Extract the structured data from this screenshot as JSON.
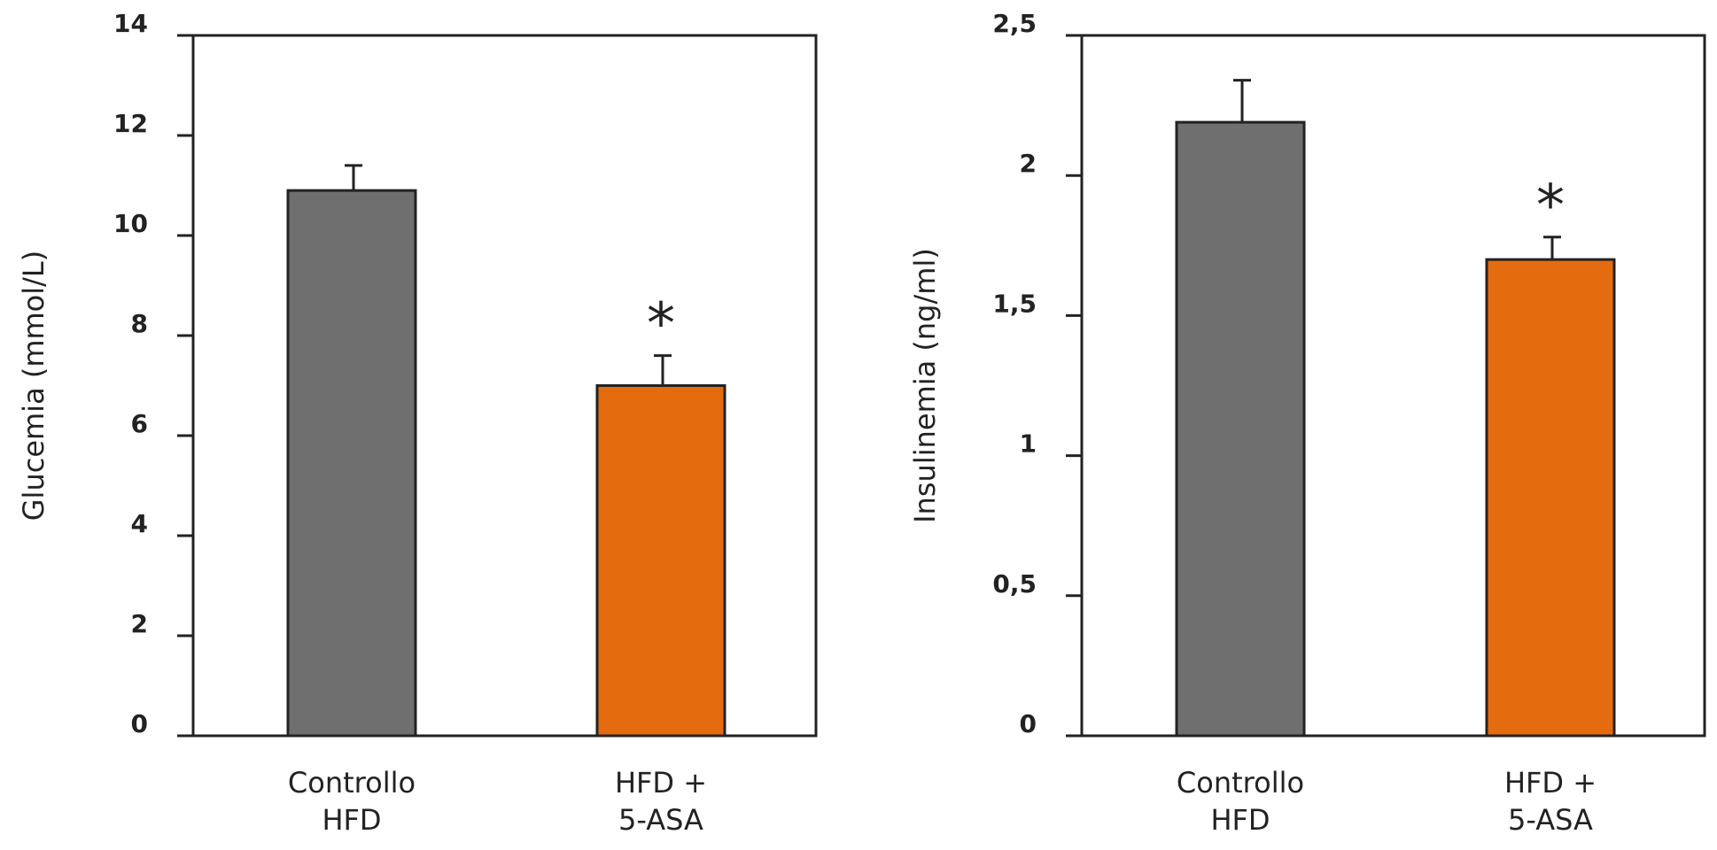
{
  "chart_data": [
    {
      "type": "bar",
      "categories": [
        [
          "Controllo",
          "HFD"
        ],
        [
          "HFD +",
          "5-ASA"
        ]
      ],
      "values": [
        10.9,
        7.0
      ],
      "errors": [
        0.5,
        0.6
      ],
      "annotations": [
        "",
        "*"
      ],
      "ylabel": "Glucemia (mmol/L)",
      "ylim": [
        0,
        14
      ],
      "yticks": [
        0,
        2,
        4,
        6,
        8,
        10,
        12,
        14
      ],
      "ytick_labels": [
        "0",
        "2",
        "4",
        "6",
        "8",
        "10",
        "12",
        "14"
      ],
      "colors": [
        "#706f6f",
        "#e46c0f"
      ],
      "grid": false,
      "legend": "none"
    },
    {
      "type": "bar",
      "categories": [
        [
          "Controllo",
          "HFD"
        ],
        [
          "HFD +",
          "5-ASA"
        ]
      ],
      "values": [
        2.19,
        1.7
      ],
      "errors": [
        0.15,
        0.08
      ],
      "annotations": [
        "",
        "*"
      ],
      "ylabel": "Insulinemia (ng/ml)",
      "ylim": [
        0,
        2.5
      ],
      "yticks": [
        0,
        0.5,
        1,
        1.5,
        2,
        2.5
      ],
      "ytick_labels": [
        "0",
        "0,5",
        "1",
        "1,5",
        "2",
        "2,5"
      ],
      "colors": [
        "#706f6f",
        "#e46c0f"
      ],
      "grid": false,
      "legend": "none"
    }
  ]
}
